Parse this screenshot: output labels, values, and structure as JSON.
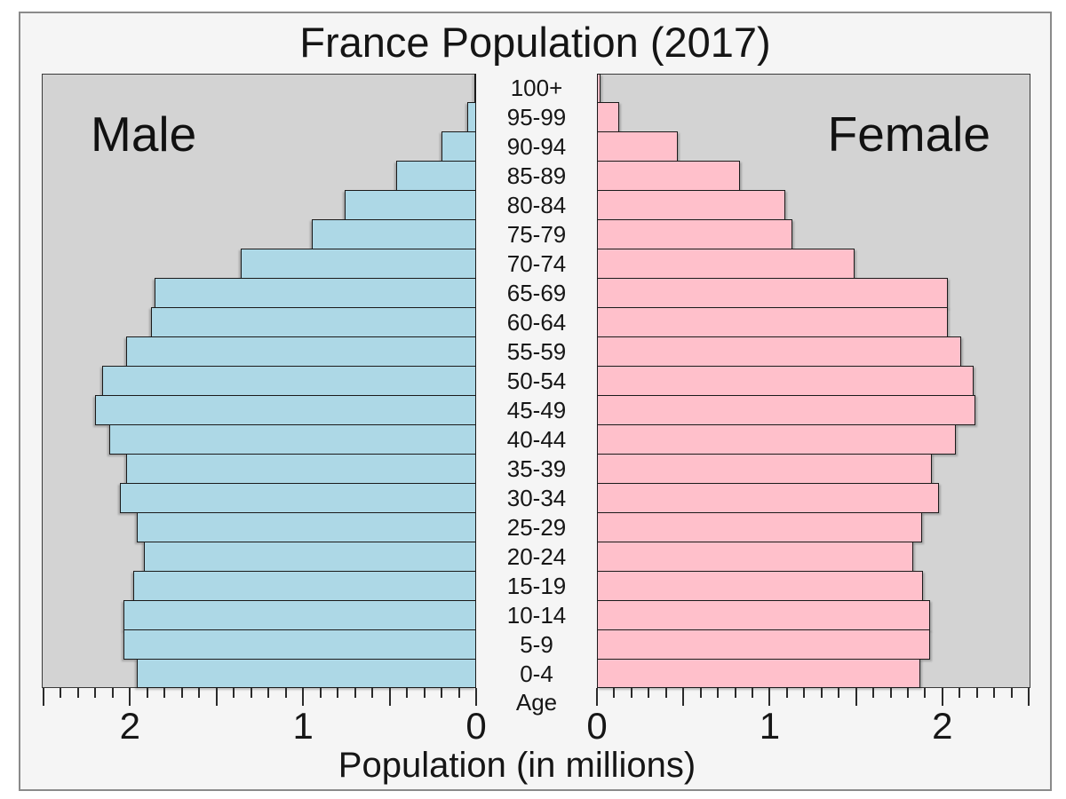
{
  "chart_data": {
    "type": "bar",
    "subtype": "population-pyramid",
    "title": "France Population (2017)",
    "xlabel": "Population (in millions)",
    "age_axis_label": "Age",
    "left_panel_label": "Male",
    "right_panel_label": "Female",
    "categories_top_to_bottom": [
      "100+",
      "95-99",
      "90-94",
      "85-89",
      "80-84",
      "75-79",
      "70-74",
      "65-69",
      "60-64",
      "55-59",
      "50-54",
      "45-49",
      "40-44",
      "35-39",
      "30-34",
      "25-29",
      "20-24",
      "15-19",
      "10-14",
      "5-9",
      "0-4"
    ],
    "series": [
      {
        "name": "Male",
        "side": "left",
        "color": "#ADD8E6",
        "values": [
          0.01,
          0.05,
          0.2,
          0.46,
          0.76,
          0.95,
          1.36,
          1.86,
          1.88,
          2.02,
          2.16,
          2.2,
          2.12,
          2.02,
          2.06,
          1.96,
          1.92,
          1.98,
          2.04,
          2.04,
          1.96
        ]
      },
      {
        "name": "Female",
        "side": "right",
        "color": "#FFC0CB",
        "values": [
          0.02,
          0.13,
          0.47,
          0.83,
          1.09,
          1.13,
          1.49,
          2.03,
          2.03,
          2.11,
          2.18,
          2.19,
          2.08,
          1.94,
          1.98,
          1.88,
          1.83,
          1.89,
          1.93,
          1.93,
          1.87
        ]
      }
    ],
    "xlim": [
      0,
      2.51
    ],
    "x_minor_tick_step": 0.1,
    "x_medium_tick_step": 0.5,
    "x_labeled_ticks": [
      {
        "v": 0,
        "label": "0"
      },
      {
        "v": 1,
        "label": "1"
      },
      {
        "v": 2,
        "label": "2"
      }
    ],
    "male_axis_tick_labels_left_to_right": [
      "2",
      "1",
      "0"
    ],
    "female_axis_tick_labels_left_to_right": [
      "0",
      "1",
      "2"
    ],
    "grid": false,
    "legend_position": "none",
    "colors": {
      "male_bar": "#ADD8E6",
      "female_bar": "#FFC0CB",
      "bar_outline": "#1a1a1a",
      "plot_background": "#D3D3D3",
      "figure_background": "#F5F5F5",
      "frame_border": "#8A8A8A",
      "text": "#161616"
    }
  }
}
